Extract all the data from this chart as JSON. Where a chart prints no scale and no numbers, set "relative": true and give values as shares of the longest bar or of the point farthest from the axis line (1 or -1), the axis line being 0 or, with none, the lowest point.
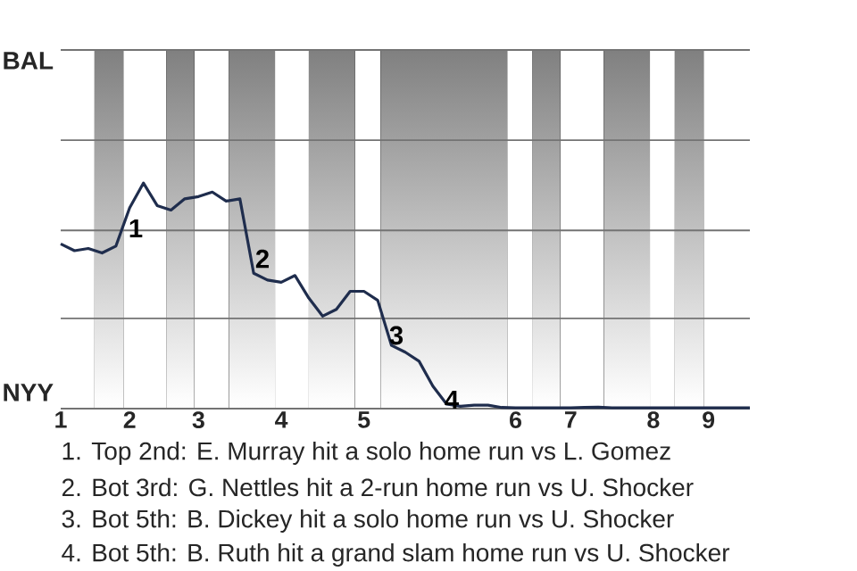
{
  "chart_data": {
    "type": "line",
    "categories": [
      "1",
      null,
      null,
      null,
      null,
      "2",
      null,
      null,
      null,
      null,
      "3",
      null,
      null,
      null,
      null,
      null,
      "4",
      null,
      null,
      null,
      null,
      null,
      "5",
      null,
      null,
      null,
      null,
      null,
      null,
      null,
      null,
      null,
      null,
      "6",
      null,
      null,
      null,
      "7",
      null,
      null,
      null,
      null,
      null,
      "8",
      null,
      null,
      null,
      "9",
      null,
      null,
      null
    ],
    "relative": true,
    "series": [
      {
        "color": "#1f2d4d",
        "values": [
          0.73,
          0.7,
          0.71,
          0.69,
          0.72,
          0.89,
          1,
          0.9,
          0.88,
          0.93,
          0.94,
          0.96,
          0.92,
          0.93,
          0.6,
          0.57,
          0.56,
          0.59,
          0.49,
          0.41,
          0.44,
          0.52,
          0.52,
          0.48,
          0.28,
          0.25,
          0.21,
          0.1,
          0.02,
          0.01,
          0.015,
          0.015,
          0.005,
          0.003,
          0.003,
          0.003,
          0.003,
          0.003,
          0.005,
          0.006,
          0.003,
          0.003,
          0.003,
          0.003,
          0.003,
          0.003,
          0.003,
          0.003,
          0.003,
          0.003,
          0.003
        ]
      }
    ],
    "ref_lines": [
      {
        "axis": "y",
        "value": 0,
        "color": "#737373"
      },
      {
        "axis": "y",
        "value": 0.4,
        "color": "#737373"
      },
      {
        "axis": "y",
        "value": 0.79,
        "color": "#737373"
      },
      {
        "axis": "y",
        "value": 1.19,
        "color": "#737373"
      },
      {
        "axis": "y",
        "value": 1.59,
        "color": "#737373"
      }
    ],
    "marker": "none",
    "line_style": "solid",
    "annotations": [
      "1",
      "2",
      "3",
      "4",
      "BAL",
      "NYY",
      "1. Top 2nd: E. Murray hit a solo home run vs L. Gomez",
      "2. Bot 3rd: G. Nettles hit a 2-run home run vs U. Shocker",
      "3. Bot 5th: B. Dickey hit a solo home run vs U. Shocker",
      "4. Bot 5th: B. Ruth hit a grand slam home run vs U. Shocker"
    ]
  }
}
